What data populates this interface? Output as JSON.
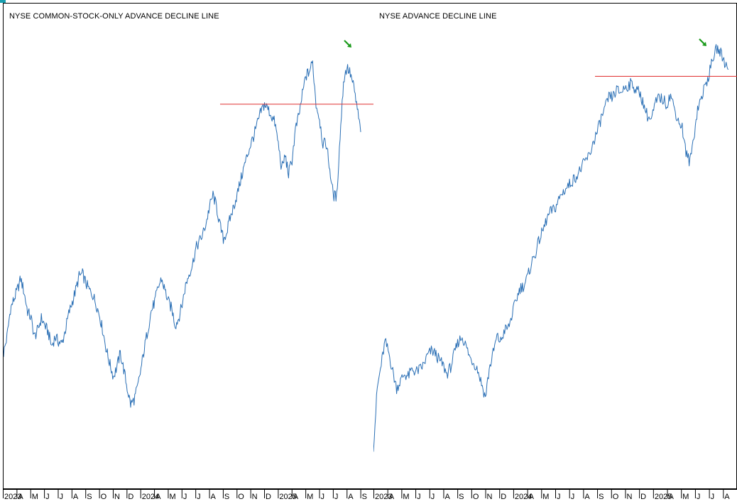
{
  "colors": {
    "series": "#2a6fb5",
    "resistance": "#e03030",
    "arrow": "#1a9a1a",
    "frame": "#000000",
    "background": "#ffffff"
  },
  "chart_data": [
    {
      "type": "line",
      "title": "NYSE COMMON-STOCK-ONLY ADVANCE DECLINE LINE",
      "x_tick_labels": [
        "2023",
        "A",
        "M",
        "J",
        "J",
        "A",
        "S",
        "O",
        "N",
        "D",
        "2024",
        "A",
        "M",
        "J",
        "J",
        "A",
        "S",
        "O",
        "N",
        "D",
        "2025",
        "A",
        "M",
        "J",
        "J",
        "A",
        "S"
      ],
      "series": [
        {
          "values": [
            45,
            52,
            64,
            68,
            72,
            77,
            71,
            63,
            60,
            52,
            55,
            60,
            57,
            54,
            48,
            52,
            50,
            49,
            55,
            62,
            67,
            72,
            78,
            79,
            75,
            72,
            70,
            66,
            61,
            54,
            46,
            40,
            35,
            39,
            45,
            38,
            30,
            23,
            25,
            30,
            38,
            47,
            55,
            63,
            67,
            73,
            77,
            72,
            67,
            64,
            57,
            60,
            66,
            74,
            79,
            83,
            90,
            93,
            96,
            101,
            108,
            113,
            108,
            100,
            94,
            97,
            103,
            108,
            113,
            119,
            125,
            130,
            135,
            139,
            144,
            149,
            152,
            150,
            147,
            144,
            135,
            124,
            130,
            122,
            128,
            141,
            147,
            156,
            164,
            166,
            170,
            152,
            146,
            135,
            135,
            124,
            113,
            112,
            138,
            162,
            168,
            165,
            159,
            150,
            140
          ],
          "resistance_level": 152,
          "highlight_last_high": true
        }
      ],
      "ylim": [
        0,
        180
      ]
    },
    {
      "type": "line",
      "title": "NYSE ADVANCE DECLINE LINE",
      "x_tick_labels": [
        "2023",
        "A",
        "M",
        "J",
        "J",
        "A",
        "S",
        "O",
        "N",
        "D",
        "2024",
        "A",
        "M",
        "J",
        "J",
        "A",
        "S",
        "O",
        "N",
        "D",
        "2025",
        "A",
        "M",
        "J",
        "J",
        "A"
      ],
      "series": [
        {
          "values": [
            5,
            30,
            40,
            50,
            45,
            37,
            30,
            33,
            36,
            35,
            38,
            37,
            38,
            40,
            44,
            46,
            45,
            42,
            40,
            36,
            39,
            45,
            50,
            52,
            48,
            43,
            41,
            38,
            32,
            26,
            38,
            45,
            52,
            50,
            55,
            56,
            62,
            68,
            73,
            74,
            78,
            84,
            88,
            94,
            98,
            103,
            106,
            107,
            111,
            114,
            116,
            118,
            120,
            122,
            125,
            128,
            130,
            136,
            140,
            146,
            150,
            155,
            155,
            158,
            157,
            159,
            160,
            161,
            158,
            157,
            152,
            147,
            145,
            152,
            155,
            154,
            152,
            156,
            150,
            145,
            142,
            131,
            127,
            138,
            150,
            155,
            160,
            165,
            172,
            176,
            174,
            170,
            167
          ],
          "resistance_level": 164,
          "highlight_last_high": true
        }
      ],
      "ylim": [
        0,
        180
      ]
    }
  ]
}
